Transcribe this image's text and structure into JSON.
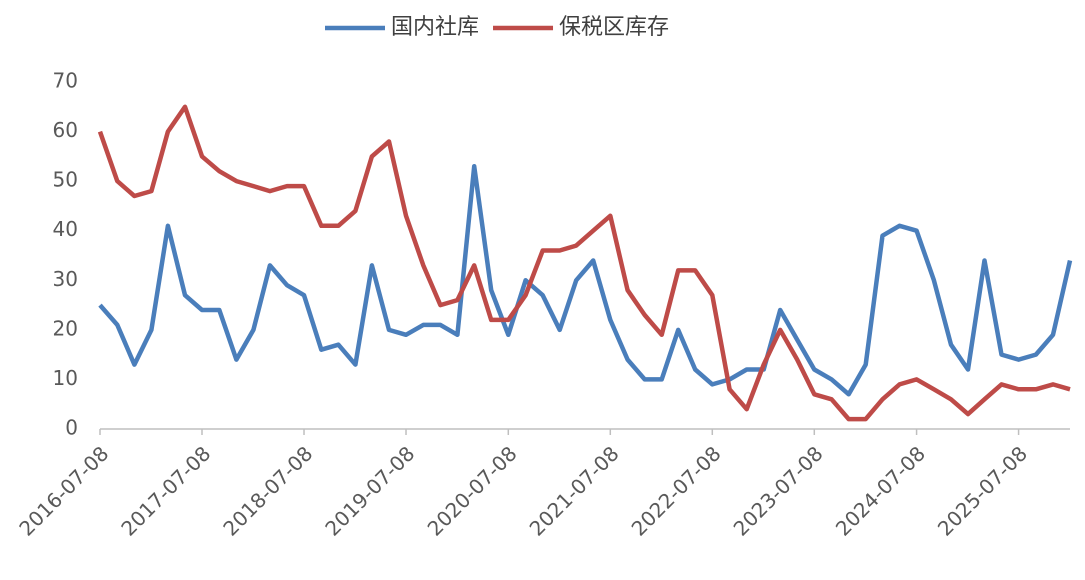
{
  "chart_data": {
    "type": "line",
    "x": [
      "2016-07-08",
      "2016-09-08",
      "2016-11-08",
      "2017-01-08",
      "2017-03-08",
      "2017-05-08",
      "2017-07-08",
      "2017-09-08",
      "2017-11-08",
      "2018-01-08",
      "2018-03-08",
      "2018-05-08",
      "2018-07-08",
      "2018-09-08",
      "2018-11-08",
      "2019-01-08",
      "2019-03-08",
      "2019-05-08",
      "2019-07-08",
      "2019-09-08",
      "2019-11-08",
      "2020-01-08",
      "2020-03-08",
      "2020-05-08",
      "2020-07-08",
      "2020-09-08",
      "2020-11-08",
      "2021-01-08",
      "2021-03-08",
      "2021-05-08",
      "2021-07-08",
      "2021-09-08",
      "2021-11-08",
      "2022-01-08",
      "2022-03-08",
      "2022-05-08",
      "2022-07-08",
      "2022-09-08",
      "2022-11-08",
      "2023-01-08",
      "2023-03-08",
      "2023-05-08",
      "2023-07-08",
      "2023-09-08",
      "2023-11-08",
      "2024-01-08",
      "2024-03-08",
      "2024-05-08",
      "2024-07-08",
      "2024-09-08",
      "2024-11-08",
      "2025-01-08",
      "2025-03-08",
      "2025-05-08",
      "2025-07-08",
      "2025-09-08",
      "2025-11-08",
      "2026-01-08"
    ],
    "series": [
      {
        "name": "国内社库",
        "color": "#4a7ebb",
        "values": [
          25,
          21,
          13,
          20,
          41,
          27,
          24,
          24,
          14,
          20,
          33,
          29,
          27,
          16,
          17,
          13,
          33,
          20,
          19,
          21,
          21,
          19,
          53,
          28,
          19,
          30,
          27,
          20,
          30,
          34,
          22,
          14,
          10,
          10,
          20,
          12,
          9,
          10,
          12,
          12,
          24,
          18,
          12,
          10,
          7,
          13,
          39,
          41,
          40,
          30,
          17,
          12,
          34,
          15,
          14,
          15,
          19,
          34
        ]
      },
      {
        "name": "保税区库存",
        "color": "#be4b48",
        "values": [
          60,
          50,
          47,
          48,
          60,
          65,
          55,
          52,
          50,
          49,
          48,
          49,
          49,
          41,
          41,
          44,
          55,
          58,
          43,
          33,
          25,
          26,
          33,
          22,
          22,
          27,
          36,
          36,
          37,
          40,
          43,
          28,
          23,
          19,
          32,
          32,
          27,
          8,
          4,
          13,
          20,
          14,
          7,
          6,
          2,
          2,
          6,
          9,
          10,
          8,
          6,
          3,
          6,
          9,
          8,
          8,
          9,
          8
        ]
      }
    ],
    "xlim": [
      "2016-07-08",
      "2026-01-08"
    ],
    "xticks": [
      "2016-07-08",
      "2017-07-08",
      "2018-07-08",
      "2019-07-08",
      "2020-07-08",
      "2021-07-08",
      "2022-07-08",
      "2023-07-08",
      "2024-07-08",
      "2025-07-08"
    ],
    "ylim": [
      0,
      70
    ],
    "yticks": [
      0,
      10,
      20,
      30,
      40,
      50,
      60,
      70
    ],
    "grid": false,
    "legend": "top"
  }
}
